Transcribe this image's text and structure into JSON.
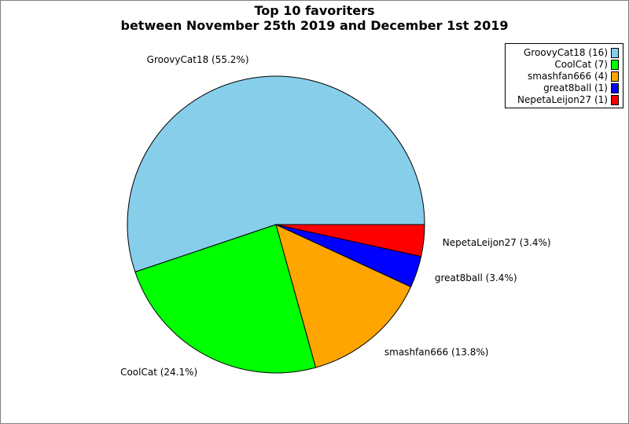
{
  "chart_data": {
    "type": "pie",
    "title": "Top 10 favoriters",
    "subtitle": "between November 25th 2019 and December 1st 2019",
    "slices": [
      {
        "name": "GroovyCat18",
        "count": 16,
        "percent": 55.2,
        "color": "#87ceeb",
        "label": "GroovyCat18 (55.2%)",
        "legend": "GroovyCat18 (16)"
      },
      {
        "name": "CoolCat",
        "count": 7,
        "percent": 24.1,
        "color": "#00ff00",
        "label": "CoolCat (24.1%)",
        "legend": "CoolCat (7)"
      },
      {
        "name": "smashfan666",
        "count": 4,
        "percent": 13.8,
        "color": "#ffa500",
        "label": "smashfan666 (13.8%)",
        "legend": "smashfan666 (4)"
      },
      {
        "name": "great8ball",
        "count": 1,
        "percent": 3.4,
        "color": "#0000ff",
        "label": "great8ball (3.4%)",
        "legend": "great8ball (1)"
      },
      {
        "name": "NepetaLeijon27",
        "count": 1,
        "percent": 3.4,
        "color": "#ff0000",
        "label": "NepetaLeijon27 (3.4%)",
        "legend": "NepetaLeijon27 (1)"
      }
    ],
    "legend_position": "top-right"
  }
}
